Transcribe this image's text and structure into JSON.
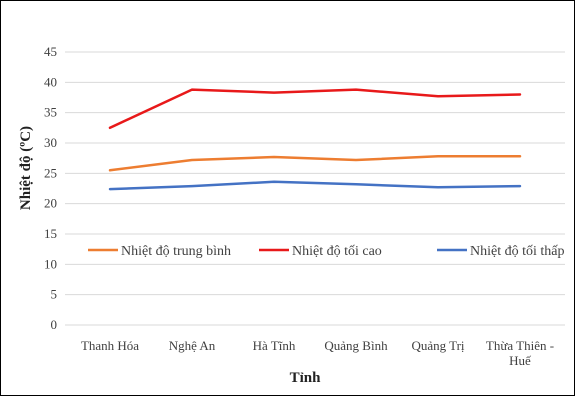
{
  "chart_data": {
    "type": "line",
    "title": "",
    "xlabel": "Tỉnh",
    "ylabel": "Nhiệt độ (ºC)",
    "categories": [
      "Thanh Hóa",
      "Nghệ An",
      "Hà Tĩnh",
      "Quảng Bình",
      "Quảng Trị",
      "Thừa Thiên - Huế"
    ],
    "category_lines": [
      [
        "Thanh Hóa"
      ],
      [
        "Nghệ An"
      ],
      [
        "Hà Tĩnh"
      ],
      [
        "Quảng Bình"
      ],
      [
        "Quảng Trị"
      ],
      [
        "Thừa Thiên -",
        "Huế"
      ]
    ],
    "ylim": [
      0,
      45
    ],
    "yticks": [
      0,
      5,
      10,
      15,
      20,
      25,
      30,
      35,
      40,
      45
    ],
    "grid": true,
    "legend_position": "middle",
    "series": [
      {
        "name": "Nhiệt độ trung bình",
        "color": "#ED7D31",
        "values": [
          25.5,
          27.2,
          27.7,
          27.2,
          27.8,
          27.8
        ]
      },
      {
        "name": "Nhiệt độ tối cao",
        "color": "#E8191A",
        "values": [
          32.5,
          38.8,
          38.3,
          38.8,
          37.7,
          38.0
        ]
      },
      {
        "name": "Nhiệt độ tối thấp",
        "color": "#4472C4",
        "values": [
          22.4,
          22.9,
          23.6,
          23.2,
          22.7,
          22.9
        ]
      }
    ]
  }
}
